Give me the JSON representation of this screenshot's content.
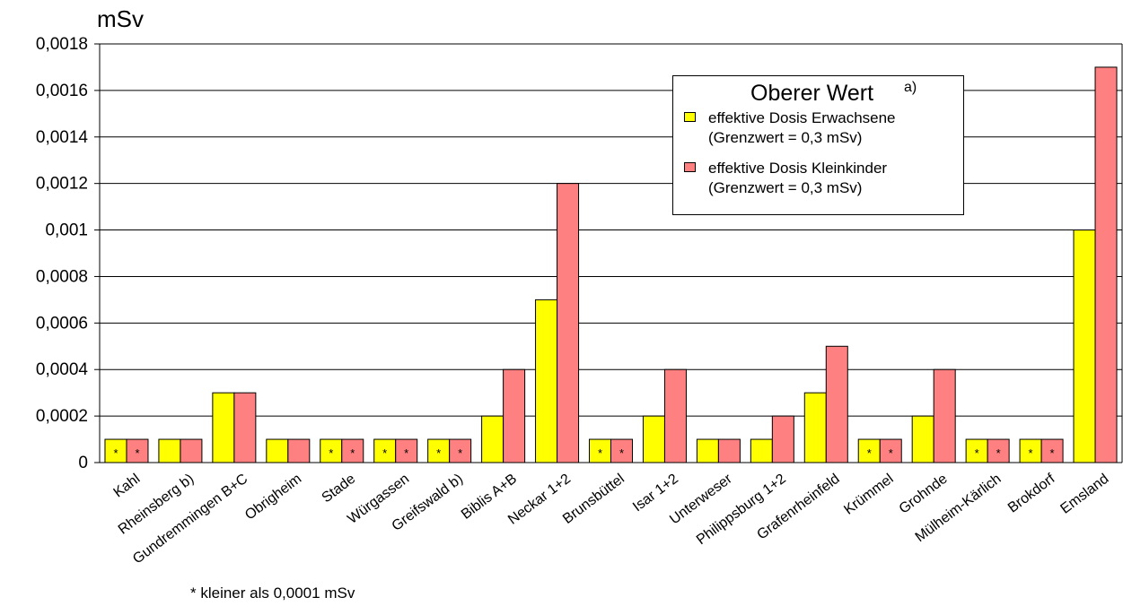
{
  "chart_data": {
    "type": "bar",
    "ylabel": "mSv",
    "ylim": [
      0,
      0.0018
    ],
    "yticks": [
      "0",
      "0,0002",
      "0,0004",
      "0,0006",
      "0,0008",
      "0,001",
      "0,0012",
      "0,0014",
      "0,0016",
      "0,0018"
    ],
    "categories": [
      "Kahl",
      "Rheinsberg b)",
      "Gundremmingen B+C",
      "Obrigheim",
      "Stade",
      "Würgassen",
      "Greifswald b)",
      "Biblis A+B",
      "Neckar 1+2",
      "Brunsbüttel",
      "Isar 1+2",
      "Unterweser",
      "Philippsburg 1+2",
      "Grafenrheinfeld",
      "Krümmel",
      "Grohnde",
      "Mülheim-Kärlich",
      "Brokdorf",
      "Emsland"
    ],
    "series": [
      {
        "name": "effektive Dosis Erwachsene",
        "values": [
          0.0001,
          0.0001,
          0.0003,
          0.0001,
          0.0001,
          0.0001,
          0.0001,
          0.0002,
          0.0007,
          0.0001,
          0.0002,
          0.0001,
          0.0001,
          0.0003,
          0.0001,
          0.0002,
          0.0001,
          0.0001,
          0.001
        ],
        "marked": [
          true,
          false,
          false,
          false,
          true,
          true,
          true,
          false,
          false,
          true,
          false,
          false,
          false,
          false,
          true,
          false,
          true,
          true,
          false
        ]
      },
      {
        "name": "effektive Dosis Kleinkinder",
        "values": [
          0.0001,
          0.0001,
          0.0003,
          0.0001,
          0.0001,
          0.0001,
          0.0001,
          0.0004,
          0.0012,
          0.0001,
          0.0004,
          0.0001,
          0.0002,
          0.0005,
          0.0001,
          0.0004,
          0.0001,
          0.0001,
          0.0017
        ],
        "marked": [
          true,
          false,
          false,
          false,
          true,
          true,
          true,
          false,
          false,
          true,
          false,
          false,
          false,
          false,
          true,
          false,
          true,
          true,
          false
        ]
      }
    ],
    "marker_symbol": "*",
    "legend": {
      "title": "Oberer Wert",
      "title_note": "a)",
      "placement": "top-right",
      "items": [
        {
          "line1": "effektive Dosis Erwachsene",
          "line2": "(Grenzwert = 0,3 mSv)"
        },
        {
          "line1": "effektive Dosis Kleinkinder",
          "line2": "(Grenzwert = 0,3 mSv)"
        }
      ]
    },
    "footnote": "* kleiner als 0,0001 mSv",
    "grid": true,
    "colors": {
      "adults": "#FFFF00",
      "children": "#FF8080",
      "axis": "#000000",
      "grid": "#000000"
    }
  }
}
